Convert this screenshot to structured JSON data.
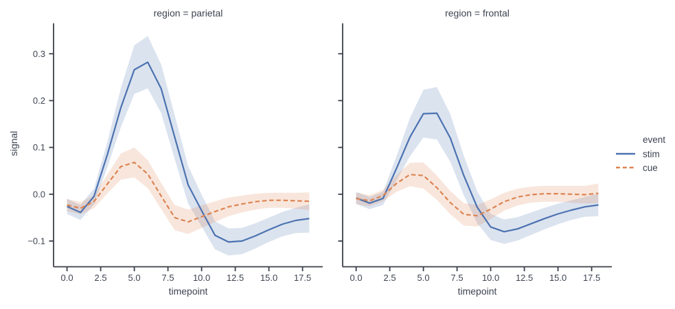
{
  "figure": {
    "background": "#ffffff",
    "text_color": "#3d4350",
    "spine_color": "#3a3f48"
  },
  "legend": {
    "title": "event",
    "entries": [
      {
        "label": "stim",
        "color": "#4c72b0",
        "dash": "solid"
      },
      {
        "label": "cue",
        "color": "#dd8452",
        "dash": "dashed"
      }
    ]
  },
  "chart_data": [
    {
      "type": "line",
      "title": "region = parietal",
      "xlabel": "timepoint",
      "ylabel": "signal",
      "grid": false,
      "legend_position": "right of figure",
      "x": [
        0,
        1,
        2,
        3,
        4,
        5,
        6,
        7,
        8,
        9,
        10,
        11,
        12,
        13,
        14,
        15,
        16,
        17,
        18
      ],
      "xticks": [
        0,
        2.5,
        5,
        7.5,
        10,
        12.5,
        15,
        17.5
      ],
      "xtick_labels": [
        "0.0",
        "2.5",
        "5.0",
        "7.5",
        "10.0",
        "12.5",
        "15.0",
        "17.5"
      ],
      "yticks": [
        0.3,
        0.2,
        0.1,
        0.0,
        -0.1
      ],
      "ytick_labels": [
        "0.3",
        "0.2",
        "0.1",
        "0.0",
        "−0.1"
      ],
      "xlim": [
        -1.0,
        19.0
      ],
      "ylim": [
        -0.155,
        0.365
      ],
      "series": [
        {
          "name": "stim",
          "style": "solid",
          "color": "#4c72b0",
          "values": [
            -0.026,
            -0.039,
            -0.005,
            0.085,
            0.185,
            0.266,
            0.282,
            0.225,
            0.122,
            0.02,
            -0.035,
            -0.088,
            -0.102,
            -0.1,
            -0.089,
            -0.076,
            -0.064,
            -0.056,
            -0.052
          ],
          "ci_halfwidth": [
            0.016,
            0.016,
            0.017,
            0.027,
            0.042,
            0.052,
            0.056,
            0.052,
            0.047,
            0.04,
            0.034,
            0.03,
            0.029,
            0.028,
            0.027,
            0.026,
            0.026,
            0.027,
            0.03
          ]
        },
        {
          "name": "cue",
          "style": "dashed",
          "color": "#dd8452",
          "values": [
            -0.023,
            -0.03,
            -0.016,
            0.022,
            0.059,
            0.068,
            0.043,
            -0.004,
            -0.05,
            -0.059,
            -0.048,
            -0.037,
            -0.027,
            -0.021,
            -0.016,
            -0.013,
            -0.013,
            -0.014,
            -0.015
          ],
          "ci_halfwidth": [
            0.013,
            0.013,
            0.014,
            0.02,
            0.028,
            0.032,
            0.03,
            0.028,
            0.027,
            0.026,
            0.024,
            0.022,
            0.02,
            0.018,
            0.017,
            0.016,
            0.016,
            0.017,
            0.019
          ]
        }
      ]
    },
    {
      "type": "line",
      "title": "region = frontal",
      "xlabel": "timepoint",
      "ylabel": "",
      "grid": false,
      "legend_position": "right of figure",
      "x": [
        0,
        1,
        2,
        3,
        4,
        5,
        6,
        7,
        8,
        9,
        10,
        11,
        12,
        13,
        14,
        15,
        16,
        17,
        18
      ],
      "xticks": [
        0,
        2.5,
        5,
        7.5,
        10,
        12.5,
        15,
        17.5
      ],
      "xtick_labels": [
        "0.0",
        "2.5",
        "5.0",
        "7.5",
        "10.0",
        "12.5",
        "15.0",
        "17.5"
      ],
      "yticks": [
        0.3,
        0.2,
        0.1,
        0.0,
        -0.1
      ],
      "ytick_labels": [],
      "xlim": [
        -1.0,
        19.0
      ],
      "ylim": [
        -0.155,
        0.365
      ],
      "series": [
        {
          "name": "stim",
          "style": "solid",
          "color": "#4c72b0",
          "values": [
            -0.008,
            -0.019,
            -0.009,
            0.055,
            0.122,
            0.172,
            0.173,
            0.12,
            0.04,
            -0.028,
            -0.07,
            -0.08,
            -0.074,
            -0.063,
            -0.052,
            -0.042,
            -0.034,
            -0.027,
            -0.023
          ],
          "ci_halfwidth": [
            0.013,
            0.013,
            0.014,
            0.026,
            0.041,
            0.051,
            0.056,
            0.051,
            0.042,
            0.034,
            0.028,
            0.026,
            0.025,
            0.024,
            0.023,
            0.022,
            0.021,
            0.021,
            0.024
          ]
        },
        {
          "name": "cue",
          "style": "dashed",
          "color": "#dd8452",
          "values": [
            -0.009,
            -0.014,
            -0.003,
            0.023,
            0.042,
            0.04,
            0.014,
            -0.018,
            -0.043,
            -0.046,
            -0.032,
            -0.016,
            -0.006,
            -0.001,
            0.001,
            0.001,
            0.0,
            -0.001,
            0.002
          ],
          "ci_halfwidth": [
            0.012,
            0.012,
            0.012,
            0.018,
            0.025,
            0.028,
            0.026,
            0.025,
            0.024,
            0.023,
            0.021,
            0.019,
            0.018,
            0.017,
            0.017,
            0.017,
            0.018,
            0.019,
            0.021
          ]
        }
      ]
    }
  ]
}
